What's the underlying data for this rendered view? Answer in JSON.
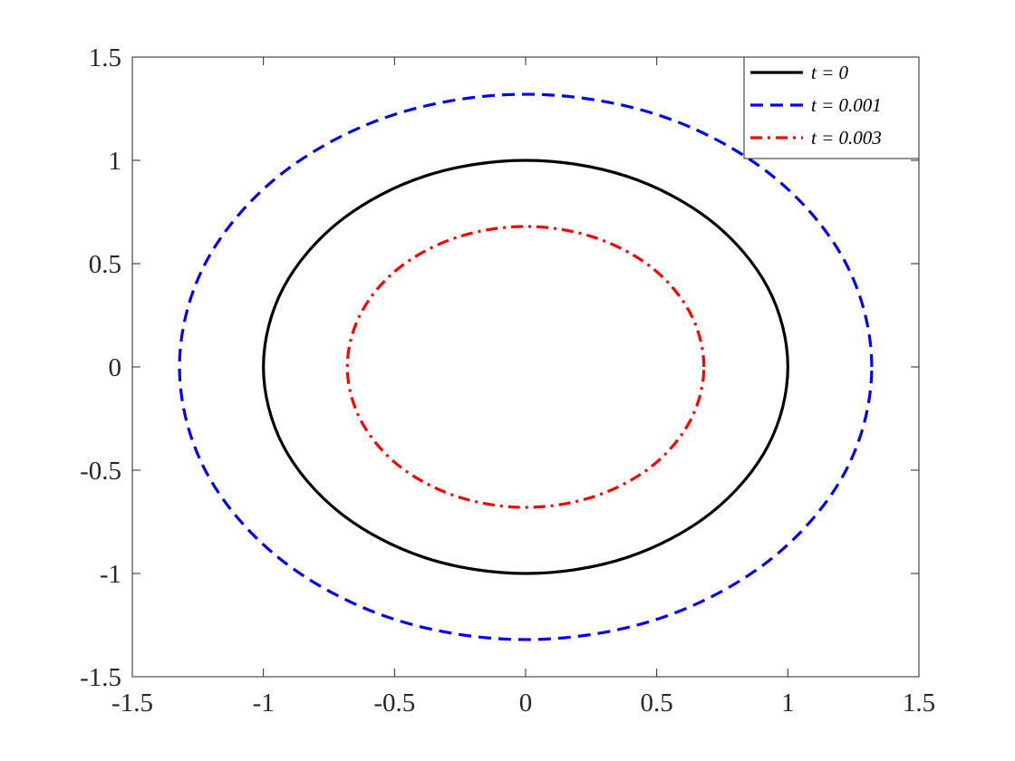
{
  "chart_data": {
    "type": "line",
    "xlim": [
      -1.5,
      1.5
    ],
    "ylim": [
      -1.5,
      1.5
    ],
    "xticks": [
      -1.5,
      -1,
      -0.5,
      0,
      0.5,
      1,
      1.5
    ],
    "yticks": [
      -1.5,
      -1,
      -0.5,
      0,
      0.5,
      1,
      1.5
    ],
    "grid": false,
    "legend": "upper right",
    "series": [
      {
        "name": "t = 0",
        "color": "#000000",
        "line_style": "solid",
        "x": [
          1,
          0.924,
          0.707,
          0.383,
          0,
          -0.383,
          -0.707,
          -0.924,
          -1,
          -0.924,
          -0.707,
          -0.383,
          0,
          0.383,
          0.707,
          0.924,
          1
        ],
        "values": [
          0,
          0.383,
          0.707,
          0.924,
          1,
          0.924,
          0.707,
          0.383,
          0,
          -0.383,
          -0.707,
          -0.924,
          -1,
          -0.924,
          -0.707,
          -0.383,
          0
        ]
      },
      {
        "name": "t = 0.001",
        "color": "#0000ff",
        "line_style": "dashed",
        "x": [
          1.32,
          1.22,
          0.933,
          0.505,
          0,
          -0.505,
          -0.933,
          -1.22,
          -1.32,
          -1.22,
          -0.933,
          -0.505,
          0,
          0.505,
          0.933,
          1.22,
          1.32
        ],
        "values": [
          0,
          0.505,
          0.933,
          1.22,
          1.32,
          1.22,
          0.933,
          0.505,
          0,
          -0.505,
          -0.933,
          -1.22,
          -1.32,
          -1.22,
          -0.933,
          -0.505,
          0
        ]
      },
      {
        "name": "t = 0.003",
        "color": "#ff0000",
        "line_style": "dashdot",
        "x": [
          0.68,
          0.628,
          0.481,
          0.26,
          0,
          -0.26,
          -0.481,
          -0.628,
          -0.68,
          -0.628,
          -0.481,
          -0.26,
          0,
          0.26,
          0.481,
          0.628,
          0.68
        ],
        "values": [
          0,
          0.26,
          0.481,
          0.628,
          0.68,
          0.628,
          0.481,
          0.26,
          0,
          -0.26,
          -0.481,
          -0.628,
          -0.68,
          -0.628,
          -0.481,
          -0.26,
          0
        ]
      }
    ]
  }
}
